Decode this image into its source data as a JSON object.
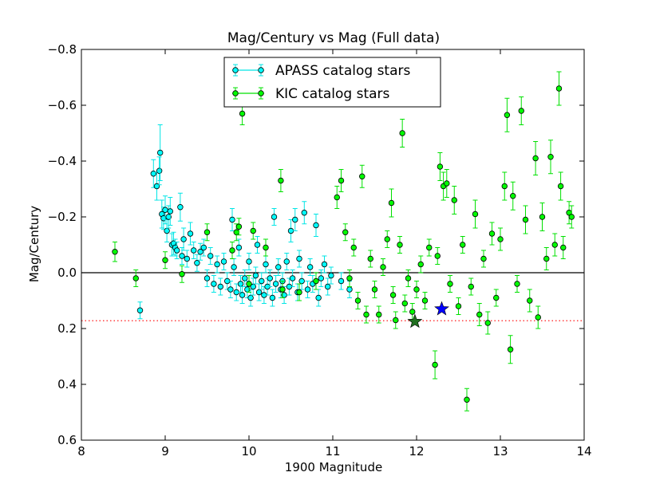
{
  "chart_data": {
    "type": "scatter",
    "title": "Mag/Century vs Mag (Full data)",
    "xlabel": "1900 Magnitude",
    "ylabel": "Mag/Century",
    "xlim": [
      8,
      14
    ],
    "ylim": [
      -0.8,
      0.6
    ],
    "y_inverted": true,
    "x_ticks": [
      8,
      9,
      10,
      11,
      12,
      13,
      14
    ],
    "x_tick_labels": [
      "8",
      "9",
      "10",
      "11",
      "12",
      "13",
      "14"
    ],
    "y_ticks": [
      -0.8,
      -0.6,
      -0.4,
      -0.2,
      0.0,
      0.2,
      0.4,
      0.6
    ],
    "y_tick_labels": [
      "−0.8",
      "−0.6",
      "−0.4",
      "−0.2",
      "0.0",
      "0.2",
      "0.4",
      "0.6"
    ],
    "grid": false,
    "legend_position": "top-center",
    "reference_lines": [
      {
        "style": "solid",
        "color": "#000000",
        "y": 0.0
      },
      {
        "style": "dotted",
        "color": "#ff0000",
        "y": 0.172
      }
    ],
    "special_markers": [
      {
        "shape": "star",
        "color": "#0000ff",
        "x": 12.3,
        "y": 0.13
      },
      {
        "shape": "star",
        "color": "#1f6f1f",
        "x": 11.98,
        "y": 0.175
      }
    ],
    "series": [
      {
        "name": "APASS catalog stars",
        "face_color": "#00ffff",
        "edge_color": "#000000",
        "error_color": "#00e5e5",
        "points": [
          {
            "x": 8.7,
            "y": 0.135,
            "err": 0.03
          },
          {
            "x": 8.86,
            "y": -0.355,
            "err": 0.05
          },
          {
            "x": 8.9,
            "y": -0.31,
            "err": 0.05
          },
          {
            "x": 8.93,
            "y": -0.365,
            "err": 0.05
          },
          {
            "x": 8.94,
            "y": -0.43,
            "err": 0.1
          },
          {
            "x": 8.96,
            "y": -0.21,
            "err": 0.05
          },
          {
            "x": 8.98,
            "y": -0.195,
            "err": 0.04
          },
          {
            "x": 9.0,
            "y": -0.225,
            "err": 0.05
          },
          {
            "x": 9.02,
            "y": -0.15,
            "err": 0.04
          },
          {
            "x": 9.04,
            "y": -0.2,
            "err": 0.04
          },
          {
            "x": 9.06,
            "y": -0.22,
            "err": 0.05
          },
          {
            "x": 9.08,
            "y": -0.1,
            "err": 0.04
          },
          {
            "x": 9.1,
            "y": -0.105,
            "err": 0.04
          },
          {
            "x": 9.12,
            "y": -0.09,
            "err": 0.03
          },
          {
            "x": 9.14,
            "y": -0.08,
            "err": 0.03
          },
          {
            "x": 9.18,
            "y": -0.235,
            "err": 0.05
          },
          {
            "x": 9.2,
            "y": -0.06,
            "err": 0.03
          },
          {
            "x": 9.22,
            "y": -0.12,
            "err": 0.04
          },
          {
            "x": 9.26,
            "y": -0.05,
            "err": 0.03
          },
          {
            "x": 9.3,
            "y": -0.14,
            "err": 0.04
          },
          {
            "x": 9.34,
            "y": -0.08,
            "err": 0.03
          },
          {
            "x": 9.38,
            "y": -0.035,
            "err": 0.03
          },
          {
            "x": 9.42,
            "y": -0.075,
            "err": 0.03
          },
          {
            "x": 9.46,
            "y": -0.09,
            "err": 0.03
          },
          {
            "x": 9.5,
            "y": 0.02,
            "err": 0.03
          },
          {
            "x": 9.54,
            "y": -0.06,
            "err": 0.03
          },
          {
            "x": 9.58,
            "y": 0.04,
            "err": 0.03
          },
          {
            "x": 9.62,
            "y": -0.03,
            "err": 0.03
          },
          {
            "x": 9.66,
            "y": 0.05,
            "err": 0.03
          },
          {
            "x": 9.7,
            "y": -0.04,
            "err": 0.03
          },
          {
            "x": 9.74,
            "y": 0.03,
            "err": 0.03
          },
          {
            "x": 9.78,
            "y": 0.06,
            "err": 0.03
          },
          {
            "x": 9.8,
            "y": -0.19,
            "err": 0.04
          },
          {
            "x": 9.82,
            "y": -0.02,
            "err": 0.03
          },
          {
            "x": 9.85,
            "y": 0.07,
            "err": 0.03
          },
          {
            "x": 9.88,
            "y": -0.09,
            "err": 0.03
          },
          {
            "x": 9.9,
            "y": 0.04,
            "err": 0.03
          },
          {
            "x": 9.92,
            "y": 0.08,
            "err": 0.03
          },
          {
            "x": 9.95,
            "y": 0.02,
            "err": 0.03
          },
          {
            "x": 9.98,
            "y": 0.06,
            "err": 0.03
          },
          {
            "x": 10.0,
            "y": -0.04,
            "err": 0.03
          },
          {
            "x": 10.02,
            "y": 0.09,
            "err": 0.03
          },
          {
            "x": 10.05,
            "y": 0.05,
            "err": 0.03
          },
          {
            "x": 10.08,
            "y": 0.01,
            "err": 0.03
          },
          {
            "x": 10.1,
            "y": -0.1,
            "err": 0.03
          },
          {
            "x": 10.12,
            "y": 0.07,
            "err": 0.03
          },
          {
            "x": 10.15,
            "y": 0.03,
            "err": 0.03
          },
          {
            "x": 10.18,
            "y": 0.08,
            "err": 0.03
          },
          {
            "x": 10.2,
            "y": -0.03,
            "err": 0.03
          },
          {
            "x": 10.22,
            "y": 0.05,
            "err": 0.03
          },
          {
            "x": 10.25,
            "y": 0.02,
            "err": 0.03
          },
          {
            "x": 10.28,
            "y": 0.09,
            "err": 0.03
          },
          {
            "x": 10.3,
            "y": -0.2,
            "err": 0.03
          },
          {
            "x": 10.32,
            "y": 0.04,
            "err": 0.03
          },
          {
            "x": 10.35,
            "y": -0.02,
            "err": 0.03
          },
          {
            "x": 10.38,
            "y": 0.06,
            "err": 0.03
          },
          {
            "x": 10.4,
            "y": 0.03,
            "err": 0.03
          },
          {
            "x": 10.42,
            "y": 0.08,
            "err": 0.03
          },
          {
            "x": 10.45,
            "y": -0.04,
            "err": 0.03
          },
          {
            "x": 10.48,
            "y": 0.05,
            "err": 0.03
          },
          {
            "x": 10.5,
            "y": -0.15,
            "err": 0.04
          },
          {
            "x": 10.52,
            "y": 0.02,
            "err": 0.03
          },
          {
            "x": 10.55,
            "y": -0.19,
            "err": 0.04
          },
          {
            "x": 10.58,
            "y": 0.07,
            "err": 0.03
          },
          {
            "x": 10.6,
            "y": -0.05,
            "err": 0.03
          },
          {
            "x": 10.63,
            "y": 0.03,
            "err": 0.03
          },
          {
            "x": 10.66,
            "y": -0.215,
            "err": 0.04
          },
          {
            "x": 10.7,
            "y": 0.06,
            "err": 0.03
          },
          {
            "x": 10.73,
            "y": -0.02,
            "err": 0.03
          },
          {
            "x": 10.76,
            "y": 0.04,
            "err": 0.03
          },
          {
            "x": 10.8,
            "y": -0.17,
            "err": 0.04
          },
          {
            "x": 10.83,
            "y": 0.09,
            "err": 0.03
          },
          {
            "x": 10.86,
            "y": 0.02,
            "err": 0.03
          },
          {
            "x": 10.9,
            "y": -0.03,
            "err": 0.03
          },
          {
            "x": 10.94,
            "y": 0.05,
            "err": 0.03
          },
          {
            "x": 10.98,
            "y": 0.01,
            "err": 0.03
          },
          {
            "x": 11.1,
            "y": 0.03,
            "err": 0.03
          },
          {
            "x": 11.2,
            "y": 0.06,
            "err": 0.03
          }
        ]
      },
      {
        "name": "KIC catalog stars",
        "face_color": "#00ff00",
        "edge_color": "#000000",
        "error_color": "#00e000",
        "points": [
          {
            "x": 8.4,
            "y": -0.075,
            "err": 0.035
          },
          {
            "x": 8.65,
            "y": 0.02,
            "err": 0.03
          },
          {
            "x": 9.0,
            "y": -0.045,
            "err": 0.03
          },
          {
            "x": 9.2,
            "y": 0.005,
            "err": 0.03
          },
          {
            "x": 9.5,
            "y": -0.145,
            "err": 0.03
          },
          {
            "x": 9.8,
            "y": -0.08,
            "err": 0.03
          },
          {
            "x": 9.85,
            "y": -0.145,
            "err": 0.03
          },
          {
            "x": 9.88,
            "y": -0.165,
            "err": 0.03
          },
          {
            "x": 9.92,
            "y": -0.57,
            "err": 0.04
          },
          {
            "x": 10.0,
            "y": 0.04,
            "err": 0.03
          },
          {
            "x": 10.05,
            "y": -0.15,
            "err": 0.03
          },
          {
            "x": 10.2,
            "y": -0.09,
            "err": 0.03
          },
          {
            "x": 10.38,
            "y": -0.33,
            "err": 0.04
          },
          {
            "x": 10.4,
            "y": 0.06,
            "err": 0.03
          },
          {
            "x": 10.6,
            "y": 0.07,
            "err": 0.03
          },
          {
            "x": 10.8,
            "y": 0.03,
            "err": 0.03
          },
          {
            "x": 11.05,
            "y": -0.27,
            "err": 0.04
          },
          {
            "x": 11.1,
            "y": -0.33,
            "err": 0.04
          },
          {
            "x": 11.15,
            "y": -0.145,
            "err": 0.03
          },
          {
            "x": 11.2,
            "y": 0.02,
            "err": 0.03
          },
          {
            "x": 11.25,
            "y": -0.09,
            "err": 0.03
          },
          {
            "x": 11.3,
            "y": 0.1,
            "err": 0.03
          },
          {
            "x": 11.35,
            "y": -0.345,
            "err": 0.04
          },
          {
            "x": 11.4,
            "y": 0.15,
            "err": 0.03
          },
          {
            "x": 11.45,
            "y": -0.05,
            "err": 0.03
          },
          {
            "x": 11.5,
            "y": 0.06,
            "err": 0.03
          },
          {
            "x": 11.55,
            "y": 0.15,
            "err": 0.03
          },
          {
            "x": 11.6,
            "y": -0.02,
            "err": 0.03
          },
          {
            "x": 11.65,
            "y": -0.12,
            "err": 0.03
          },
          {
            "x": 11.7,
            "y": -0.25,
            "err": 0.05
          },
          {
            "x": 11.72,
            "y": 0.08,
            "err": 0.03
          },
          {
            "x": 11.75,
            "y": 0.17,
            "err": 0.03
          },
          {
            "x": 11.8,
            "y": -0.1,
            "err": 0.03
          },
          {
            "x": 11.83,
            "y": -0.5,
            "err": 0.05
          },
          {
            "x": 11.86,
            "y": 0.11,
            "err": 0.03
          },
          {
            "x": 11.9,
            "y": 0.02,
            "err": 0.03
          },
          {
            "x": 11.95,
            "y": 0.14,
            "err": 0.03
          },
          {
            "x": 12.0,
            "y": 0.06,
            "err": 0.03
          },
          {
            "x": 12.05,
            "y": -0.03,
            "err": 0.03
          },
          {
            "x": 12.1,
            "y": 0.1,
            "err": 0.03
          },
          {
            "x": 12.15,
            "y": -0.09,
            "err": 0.03
          },
          {
            "x": 12.22,
            "y": 0.33,
            "err": 0.05
          },
          {
            "x": 12.25,
            "y": -0.06,
            "err": 0.03
          },
          {
            "x": 12.28,
            "y": -0.38,
            "err": 0.05
          },
          {
            "x": 12.32,
            "y": -0.31,
            "err": 0.05
          },
          {
            "x": 12.36,
            "y": -0.32,
            "err": 0.05
          },
          {
            "x": 12.4,
            "y": 0.04,
            "err": 0.03
          },
          {
            "x": 12.45,
            "y": -0.26,
            "err": 0.05
          },
          {
            "x": 12.5,
            "y": 0.12,
            "err": 0.03
          },
          {
            "x": 12.55,
            "y": -0.1,
            "err": 0.03
          },
          {
            "x": 12.6,
            "y": 0.455,
            "err": 0.04
          },
          {
            "x": 12.65,
            "y": 0.05,
            "err": 0.03
          },
          {
            "x": 12.7,
            "y": -0.21,
            "err": 0.05
          },
          {
            "x": 12.75,
            "y": 0.15,
            "err": 0.04
          },
          {
            "x": 12.8,
            "y": -0.05,
            "err": 0.03
          },
          {
            "x": 12.85,
            "y": 0.18,
            "err": 0.04
          },
          {
            "x": 12.9,
            "y": -0.14,
            "err": 0.04
          },
          {
            "x": 12.95,
            "y": 0.09,
            "err": 0.03
          },
          {
            "x": 13.0,
            "y": -0.12,
            "err": 0.04
          },
          {
            "x": 13.05,
            "y": -0.31,
            "err": 0.05
          },
          {
            "x": 13.08,
            "y": -0.565,
            "err": 0.06
          },
          {
            "x": 13.12,
            "y": 0.275,
            "err": 0.05
          },
          {
            "x": 13.15,
            "y": -0.275,
            "err": 0.05
          },
          {
            "x": 13.2,
            "y": 0.04,
            "err": 0.03
          },
          {
            "x": 13.25,
            "y": -0.58,
            "err": 0.05
          },
          {
            "x": 13.3,
            "y": -0.19,
            "err": 0.05
          },
          {
            "x": 13.35,
            "y": 0.1,
            "err": 0.04
          },
          {
            "x": 13.42,
            "y": -0.41,
            "err": 0.06
          },
          {
            "x": 13.45,
            "y": 0.16,
            "err": 0.04
          },
          {
            "x": 13.5,
            "y": -0.2,
            "err": 0.05
          },
          {
            "x": 13.55,
            "y": -0.05,
            "err": 0.04
          },
          {
            "x": 13.6,
            "y": -0.415,
            "err": 0.06
          },
          {
            "x": 13.65,
            "y": -0.1,
            "err": 0.04
          },
          {
            "x": 13.7,
            "y": -0.66,
            "err": 0.06
          },
          {
            "x": 13.72,
            "y": -0.31,
            "err": 0.05
          },
          {
            "x": 13.75,
            "y": -0.09,
            "err": 0.04
          },
          {
            "x": 13.82,
            "y": -0.215,
            "err": 0.04
          },
          {
            "x": 13.85,
            "y": -0.2,
            "err": 0.04
          }
        ]
      }
    ]
  }
}
